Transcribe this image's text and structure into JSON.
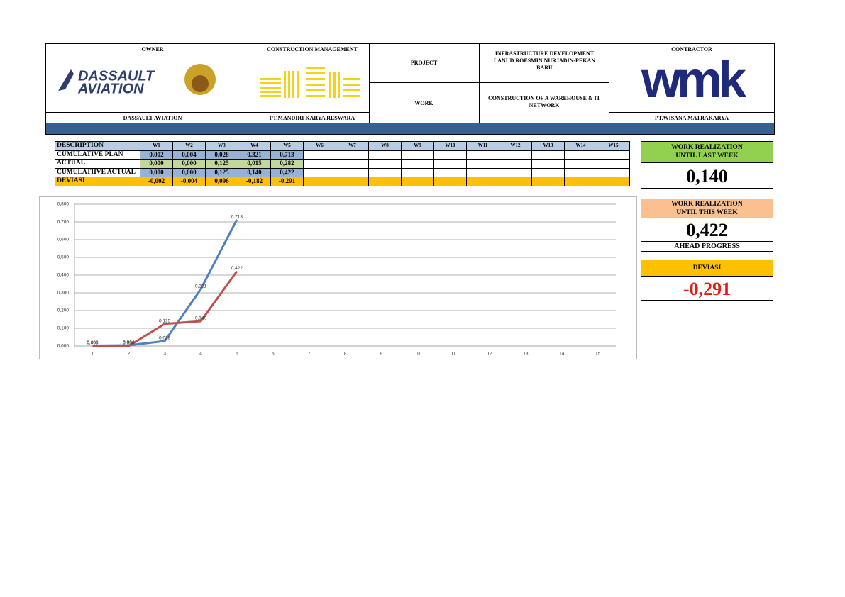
{
  "header": {
    "owner_label": "OWNER",
    "cm_label": "CONSTRUCTION MANAGEMENT",
    "project_label": "PROJECT",
    "project_text": "INFRASTRUCTURE DEVELOPMENT LANUD ROESMIN NURJADIN-PEKAN BARU",
    "work_label": "WORK",
    "work_text": "CONSTRUCTION OF A WAREHOUSE & IT NETWORK",
    "contractor_label": "CONTRACTOR",
    "owner_logo": [
      "DASSAULT",
      "AVIATION"
    ],
    "contractor_logo": "wmk",
    "owner_name": "DASSAULT AVIATION",
    "cm_name": "PT.MANDIRI KARYA RESWARA",
    "contractor_name": "PT.WISANA MATRAKARYA"
  },
  "table": {
    "columns": [
      "DESCRIPTION",
      "W1",
      "W2",
      "W3",
      "W4",
      "W5",
      "W6",
      "W7",
      "W8",
      "W9",
      "W10",
      "W11",
      "W12",
      "W13",
      "W14",
      "W15"
    ],
    "rows": [
      {
        "label": "CUMULATIVE PLAN",
        "cells": [
          "0,002",
          "0,004",
          "0,028",
          "0,321",
          "0,713"
        ]
      },
      {
        "label": "ACTUAL",
        "cells": [
          "0,000",
          "0,000",
          "0,125",
          "0,015",
          "0,282"
        ]
      },
      {
        "label": "CUMULATIIVE ACTUAL",
        "cells": [
          "0,000",
          "0,000",
          "0,125",
          "0,140",
          "0,422"
        ]
      },
      {
        "label": "DEVIASI",
        "cells": [
          "-0,002",
          "-0,004",
          "0,096",
          "-0,182",
          "-0,291"
        ]
      }
    ]
  },
  "panels": [
    {
      "title": [
        "WORK REALIZATION",
        "UNTIL LAST WEEK"
      ],
      "value": "0,140"
    },
    {
      "title": [
        "WORK REALIZATION",
        "UNTIL THIS WEEK"
      ],
      "value": "0,422",
      "note": "AHEAD PROGRESS"
    },
    {
      "title": [
        "DEVIASI"
      ],
      "value": "-0,291"
    }
  ],
  "chart_data": {
    "type": "line",
    "categories": [
      "1",
      "2",
      "3",
      "4",
      "5",
      "6",
      "7",
      "8",
      "9",
      "10",
      "11",
      "12",
      "13",
      "14",
      "15"
    ],
    "series": [
      {
        "color": "#4f81bd",
        "values": [
          0.002,
          0.004,
          0.028,
          0.321,
          0.713,
          null,
          null,
          null,
          null,
          null,
          null,
          null,
          null,
          null,
          null
        ],
        "value_labels": [
          "0,002",
          "0,004",
          "0,028",
          "0,321",
          "0,713",
          null,
          null,
          null,
          null,
          null,
          null,
          null,
          null,
          null,
          null
        ]
      },
      {
        "color": "#c0504d",
        "values": [
          0,
          0,
          0.125,
          0.14,
          0.422,
          null,
          null,
          null,
          null,
          null,
          null,
          null,
          null,
          null,
          null
        ],
        "value_labels": [
          "0,000",
          "0,000",
          "0,125",
          "0,140",
          "0,422",
          null,
          null,
          null,
          null,
          null,
          null,
          null,
          null,
          null,
          null
        ]
      }
    ],
    "ylim": [
      0,
      0.8
    ],
    "yticks": [
      {
        "value": 0,
        "label": "0,000"
      },
      {
        "value": 0.1,
        "label": "0,100"
      },
      {
        "value": 0.2,
        "label": "0,200"
      },
      {
        "value": 0.3,
        "label": "0,300"
      },
      {
        "value": 0.4,
        "label": "0,400"
      },
      {
        "value": 0.5,
        "label": "0,500"
      },
      {
        "value": 0.6,
        "label": "0,600"
      },
      {
        "value": 0.7,
        "label": "0,700"
      },
      {
        "value": 0.8,
        "label": "0,800"
      }
    ],
    "grid": true
  }
}
